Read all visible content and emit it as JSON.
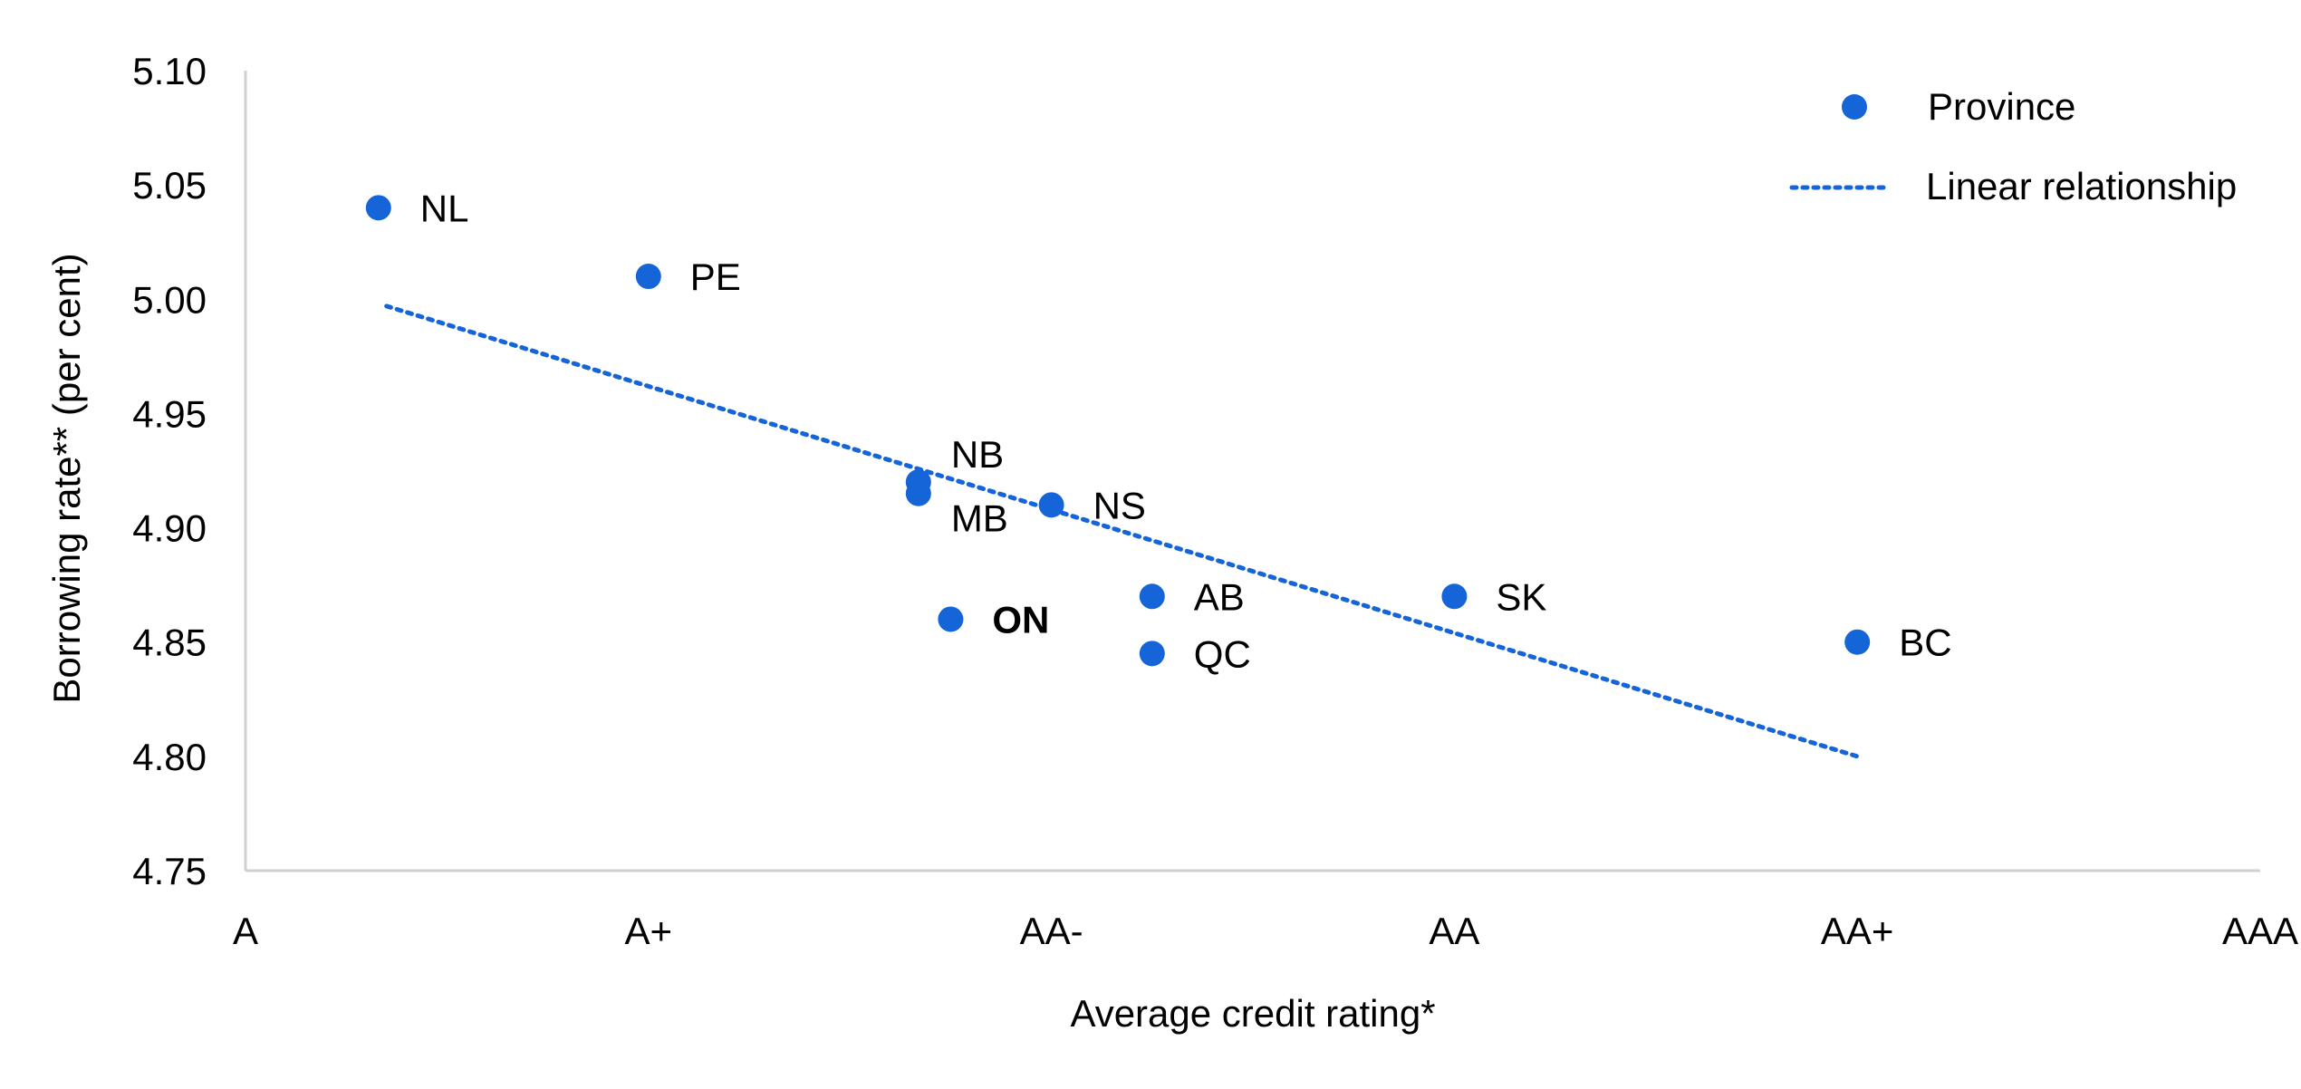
{
  "chart_data": {
    "type": "scatter",
    "title": "",
    "xlabel": "Average credit rating*",
    "ylabel": "Borrowing rate** (per cent)",
    "x_categories": [
      "A",
      "A+",
      "AA-",
      "AA",
      "AA+",
      "AAA"
    ],
    "xlim": [
      0,
      5
    ],
    "ylim": [
      4.75,
      5.1
    ],
    "y_ticks": [
      "4.75",
      "4.80",
      "4.85",
      "4.90",
      "4.95",
      "5.00",
      "5.05",
      "5.10"
    ],
    "grid": false,
    "legend_position": "top-right",
    "series": [
      {
        "name": "Province",
        "type": "scatter",
        "color": "#1565D8",
        "points": [
          {
            "label": "NL",
            "x": 0.33,
            "y": 5.04,
            "bold": false
          },
          {
            "label": "PE",
            "x": 1.0,
            "y": 5.01,
            "bold": false
          },
          {
            "label": "NB",
            "x": 1.67,
            "y": 4.92,
            "bold": false
          },
          {
            "label": "MB",
            "x": 1.67,
            "y": 4.915,
            "bold": false
          },
          {
            "label": "ON",
            "x": 1.75,
            "y": 4.86,
            "bold": true
          },
          {
            "label": "NS",
            "x": 2.0,
            "y": 4.91,
            "bold": false
          },
          {
            "label": "AB",
            "x": 2.25,
            "y": 4.87,
            "bold": false
          },
          {
            "label": "QC",
            "x": 2.25,
            "y": 4.845,
            "bold": false
          },
          {
            "label": "SK",
            "x": 3.0,
            "y": 4.87,
            "bold": false
          },
          {
            "label": "BC",
            "x": 4.0,
            "y": 4.85,
            "bold": false
          }
        ]
      },
      {
        "name": "Linear relationship",
        "type": "line",
        "style": "dotted",
        "color": "#1565D8",
        "x": [
          0.35,
          4.0
        ],
        "y": [
          4.997,
          4.8
        ]
      }
    ]
  }
}
